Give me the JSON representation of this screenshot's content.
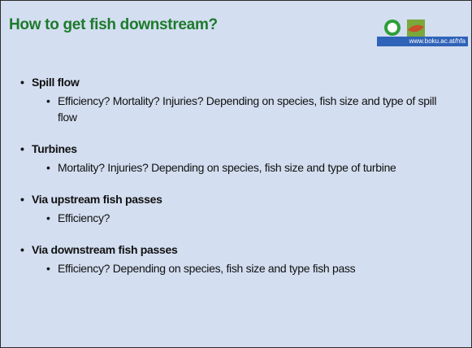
{
  "header": {
    "title": "How to get fish downstream?",
    "url": "www.boku.ac.at/hfa"
  },
  "items": [
    {
      "heading": "Spill flow",
      "sub": [
        "Efficiency? Mortality? Injuries? Depending on species, fish size and type of spill flow"
      ]
    },
    {
      "heading": "Turbines",
      "sub": [
        "Mortality? Injuries? Depending on species, fish size and type of turbine"
      ]
    },
    {
      "heading": "Via upstream fish passes",
      "sub": [
        "Efficiency?"
      ]
    },
    {
      "heading": "Via downstream fish passes",
      "sub": [
        "Efficiency? Depending on species, fish size and type fish pass"
      ]
    }
  ]
}
